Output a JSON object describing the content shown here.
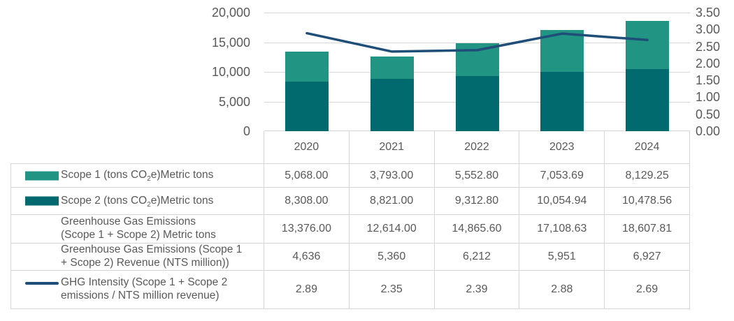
{
  "colors": {
    "scope1_teal": "#219483",
    "scope2_dark_teal": "#006A6E",
    "intensity_line_blue": "#1F4E79",
    "grid_border_gray": "#D6D6D6",
    "text_gray": "#595959"
  },
  "chart_data": {
    "type": "bar",
    "subtype": "stacked-bars-with-line-overlay",
    "title": "",
    "categories": [
      "2020",
      "2021",
      "2022",
      "2023",
      "2024"
    ],
    "series": [
      {
        "name": "Scope 1 (tons CO2e)Metric tons",
        "render": "bar",
        "stack": "top",
        "color": "#219483",
        "axis": "left",
        "values": [
          5068.0,
          3793.0,
          5552.8,
          7053.69,
          8129.25
        ],
        "display_values": [
          "5,068.00",
          "3,793.00",
          "5,552.80",
          "7,053.69",
          "8,129.25"
        ]
      },
      {
        "name": "Scope 2 (tons CO2e)Metric tons",
        "render": "bar",
        "stack": "bottom",
        "color": "#006A6E",
        "axis": "left",
        "values": [
          8308.0,
          8821.0,
          9312.8,
          10054.94,
          10478.56
        ],
        "display_values": [
          "8,308.00",
          "8,821.00",
          "9,312.80",
          "10,054.94",
          "10,478.56"
        ]
      },
      {
        "name": "GHG Intensity (Scope 1 + Scope 2 emissions / NTS million revenue)",
        "render": "line",
        "color": "#1F4E79",
        "axis": "right",
        "values": [
          2.89,
          2.35,
          2.39,
          2.88,
          2.69
        ],
        "display_values": [
          "2.89",
          "2.35",
          "2.39",
          "2.88",
          "2.69"
        ]
      }
    ],
    "left_axis": {
      "min": 0,
      "max": 20000,
      "ticks": [
        {
          "label": "20,000",
          "value": 20000
        },
        {
          "label": "15,000",
          "value": 15000
        },
        {
          "label": "10,000",
          "value": 10000
        },
        {
          "label": "5,000",
          "value": 5000
        },
        {
          "label": "0",
          "value": 0
        }
      ]
    },
    "right_axis": {
      "min": 0,
      "max": 3.5,
      "ticks": [
        {
          "label": "3.50",
          "value": 3.5
        },
        {
          "label": "3.00",
          "value": 3.0
        },
        {
          "label": "2.50",
          "value": 2.5
        },
        {
          "label": "2.00",
          "value": 2.0
        },
        {
          "label": "1.50",
          "value": 1.5
        },
        {
          "label": "1.00",
          "value": 1.0
        },
        {
          "label": "0.50",
          "value": 0.5
        },
        {
          "label": "0.00",
          "value": 0.0
        }
      ]
    },
    "grid": true,
    "legend_position": "table-left-column"
  },
  "table": {
    "rows": [
      {
        "label_pre": "Scope 1 (tons CO",
        "label_sub": "2",
        "label_post": "e)Metric tons",
        "values": [
          "5,068.00",
          "3,793.00",
          "5,552.80",
          "7,053.69",
          "8,129.25"
        ]
      },
      {
        "label_pre": "Scope 2 (tons CO",
        "label_sub": "2",
        "label_post": "e)Metric tons",
        "values": [
          "8,308.00",
          "8,821.00",
          "9,312.80",
          "10,054.94",
          "10,478.56"
        ]
      },
      {
        "label_line1": "Greenhouse Gas Emissions",
        "label_line2": "(Scope 1 + Scope 2) Metric tons",
        "values": [
          "13,376.00",
          "12,614.00",
          "14,865.60",
          "17,108.63",
          "18,607.81"
        ]
      },
      {
        "label_line1": "Greenhouse Gas Emissions (Scope 1",
        "label_line2": "+ Scope 2) Revenue (NTS million))",
        "values": [
          "4,636",
          "5,360",
          "6,212",
          "5,951",
          "6,927"
        ]
      },
      {
        "label_line1": "GHG Intensity (Scope 1 + Scope 2",
        "label_line2": "emissions / NTS million revenue)",
        "values": [
          "2.89",
          "2.35",
          "2.39",
          "2.88",
          "2.69"
        ]
      }
    ]
  }
}
